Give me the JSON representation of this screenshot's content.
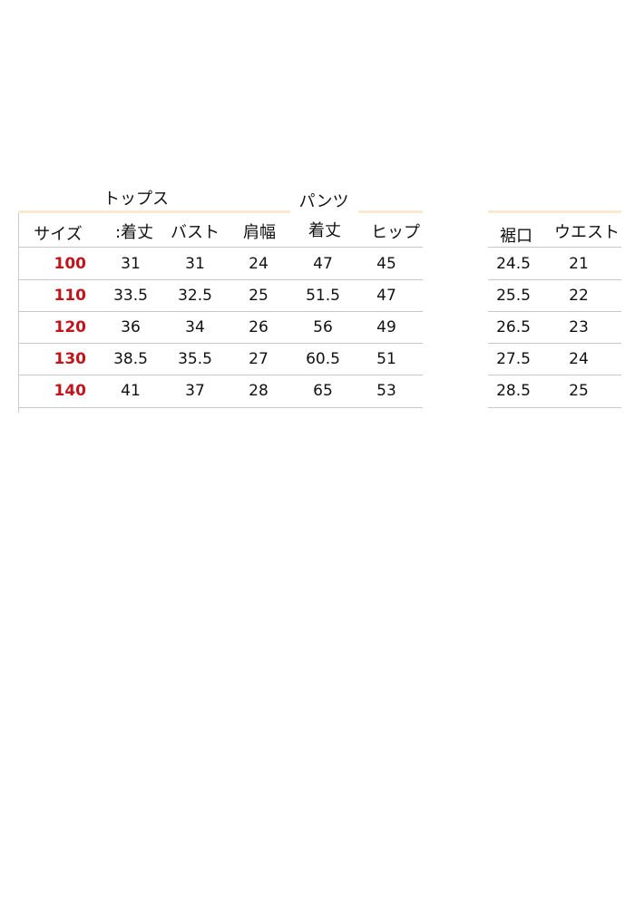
{
  "sections": {
    "tops": "トップス",
    "pants": "パンツ"
  },
  "headers": {
    "size": "サイズ",
    "tops_length": ":着丈",
    "bust": "バスト",
    "shoulder": "肩幅",
    "pants_length": "着丈",
    "hip": "ヒップ",
    "hem": "裾口",
    "waist": "ウエスト"
  },
  "rows": [
    {
      "size": "100",
      "tops_length": "31",
      "bust": "31",
      "shoulder": "24",
      "pants_length": "47",
      "hip": "45",
      "hem": "24.5",
      "waist": "21"
    },
    {
      "size": "110",
      "tops_length": "33.5",
      "bust": "32.5",
      "shoulder": "25",
      "pants_length": "51.5",
      "hip": "47",
      "hem": "25.5",
      "waist": "22"
    },
    {
      "size": "120",
      "tops_length": "36",
      "bust": "34",
      "shoulder": "26",
      "pants_length": "56",
      "hip": "49",
      "hem": "26.5",
      "waist": "23"
    },
    {
      "size": "130",
      "tops_length": "38.5",
      "bust": "35.5",
      "shoulder": "27",
      "pants_length": "60.5",
      "hip": "51",
      "hem": "27.5",
      "waist": "24"
    },
    {
      "size": "140",
      "tops_length": "41",
      "bust": "37",
      "shoulder": "28",
      "pants_length": "65",
      "hip": "53",
      "hem": "28.5",
      "waist": "25"
    }
  ],
  "colors": {
    "size_text": "#c0151b",
    "accent_strip": "#fbe9d2"
  }
}
